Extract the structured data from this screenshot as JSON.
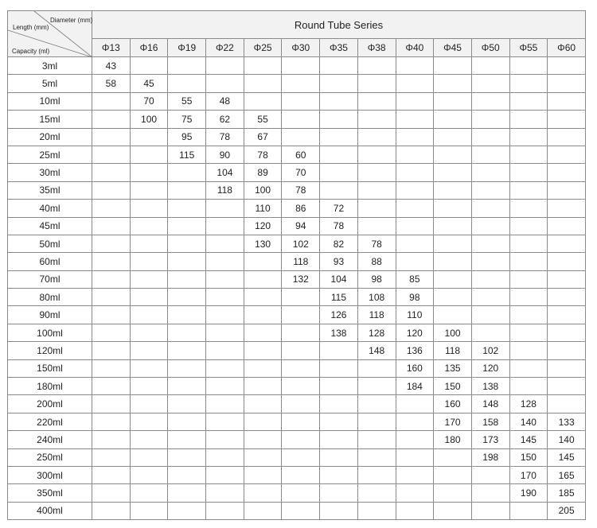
{
  "title": "Round Tube Series",
  "corner": {
    "diameter": "Diameter (mm)",
    "length": "Length (mm)",
    "capacity": "Capacity (ml)"
  },
  "diameters": [
    "Φ13",
    "Φ16",
    "Φ19",
    "Φ22",
    "Φ25",
    "Φ30",
    "Φ35",
    "Φ38",
    "Φ40",
    "Φ45",
    "Φ50",
    "Φ55",
    "Φ60"
  ],
  "rows": [
    {
      "capacity": "3ml",
      "values": [
        "43",
        "",
        "",
        "",
        "",
        "",
        "",
        "",
        "",
        "",
        "",
        "",
        ""
      ]
    },
    {
      "capacity": "5ml",
      "values": [
        "58",
        "45",
        "",
        "",
        "",
        "",
        "",
        "",
        "",
        "",
        "",
        "",
        ""
      ]
    },
    {
      "capacity": "10ml",
      "values": [
        "",
        "70",
        "55",
        "48",
        "",
        "",
        "",
        "",
        "",
        "",
        "",
        "",
        ""
      ]
    },
    {
      "capacity": "15ml",
      "values": [
        "",
        "100",
        "75",
        "62",
        "55",
        "",
        "",
        "",
        "",
        "",
        "",
        "",
        ""
      ]
    },
    {
      "capacity": "20ml",
      "values": [
        "",
        "",
        "95",
        "78",
        "67",
        "",
        "",
        "",
        "",
        "",
        "",
        "",
        ""
      ]
    },
    {
      "capacity": "25ml",
      "values": [
        "",
        "",
        "115",
        "90",
        "78",
        "60",
        "",
        "",
        "",
        "",
        "",
        "",
        ""
      ]
    },
    {
      "capacity": "30ml",
      "values": [
        "",
        "",
        "",
        "104",
        "89",
        "70",
        "",
        "",
        "",
        "",
        "",
        "",
        ""
      ]
    },
    {
      "capacity": "35ml",
      "values": [
        "",
        "",
        "",
        "118",
        "100",
        "78",
        "",
        "",
        "",
        "",
        "",
        "",
        ""
      ]
    },
    {
      "capacity": "40ml",
      "values": [
        "",
        "",
        "",
        "",
        "110",
        "86",
        "72",
        "",
        "",
        "",
        "",
        "",
        ""
      ]
    },
    {
      "capacity": "45ml",
      "values": [
        "",
        "",
        "",
        "",
        "120",
        "94",
        "78",
        "",
        "",
        "",
        "",
        "",
        ""
      ]
    },
    {
      "capacity": "50ml",
      "values": [
        "",
        "",
        "",
        "",
        "130",
        "102",
        "82",
        "78",
        "",
        "",
        "",
        "",
        ""
      ]
    },
    {
      "capacity": "60ml",
      "values": [
        "",
        "",
        "",
        "",
        "",
        "118",
        "93",
        "88",
        "",
        "",
        "",
        "",
        ""
      ]
    },
    {
      "capacity": "70ml",
      "values": [
        "",
        "",
        "",
        "",
        "",
        "132",
        "104",
        "98",
        "85",
        "",
        "",
        "",
        ""
      ]
    },
    {
      "capacity": "80ml",
      "values": [
        "",
        "",
        "",
        "",
        "",
        "",
        "115",
        "108",
        "98",
        "",
        "",
        "",
        ""
      ]
    },
    {
      "capacity": "90ml",
      "values": [
        "",
        "",
        "",
        "",
        "",
        "",
        "126",
        "118",
        "110",
        "",
        "",
        "",
        ""
      ]
    },
    {
      "capacity": "100ml",
      "values": [
        "",
        "",
        "",
        "",
        "",
        "",
        "138",
        "128",
        "120",
        "100",
        "",
        "",
        ""
      ]
    },
    {
      "capacity": "120ml",
      "values": [
        "",
        "",
        "",
        "",
        "",
        "",
        "",
        "148",
        "136",
        "118",
        "102",
        "",
        ""
      ]
    },
    {
      "capacity": "150ml",
      "values": [
        "",
        "",
        "",
        "",
        "",
        "",
        "",
        "",
        "160",
        "135",
        "120",
        "",
        ""
      ]
    },
    {
      "capacity": "180ml",
      "values": [
        "",
        "",
        "",
        "",
        "",
        "",
        "",
        "",
        "184",
        "150",
        "138",
        "",
        ""
      ]
    },
    {
      "capacity": "200ml",
      "values": [
        "",
        "",
        "",
        "",
        "",
        "",
        "",
        "",
        "",
        "160",
        "148",
        "128",
        ""
      ]
    },
    {
      "capacity": "220ml",
      "values": [
        "",
        "",
        "",
        "",
        "",
        "",
        "",
        "",
        "",
        "170",
        "158",
        "140",
        "133"
      ]
    },
    {
      "capacity": "240ml",
      "values": [
        "",
        "",
        "",
        "",
        "",
        "",
        "",
        "",
        "",
        "180",
        "173",
        "145",
        "140"
      ]
    },
    {
      "capacity": "250ml",
      "values": [
        "",
        "",
        "",
        "",
        "",
        "",
        "",
        "",
        "",
        "",
        "198",
        "150",
        "145"
      ]
    },
    {
      "capacity": "300ml",
      "values": [
        "",
        "",
        "",
        "",
        "",
        "",
        "",
        "",
        "",
        "",
        "",
        "170",
        "165"
      ]
    },
    {
      "capacity": "350ml",
      "values": [
        "",
        "",
        "",
        "",
        "",
        "",
        "",
        "",
        "",
        "",
        "",
        "190",
        "185"
      ]
    },
    {
      "capacity": "400ml",
      "values": [
        "",
        "",
        "",
        "",
        "",
        "",
        "",
        "",
        "",
        "",
        "",
        "",
        "205"
      ]
    }
  ]
}
